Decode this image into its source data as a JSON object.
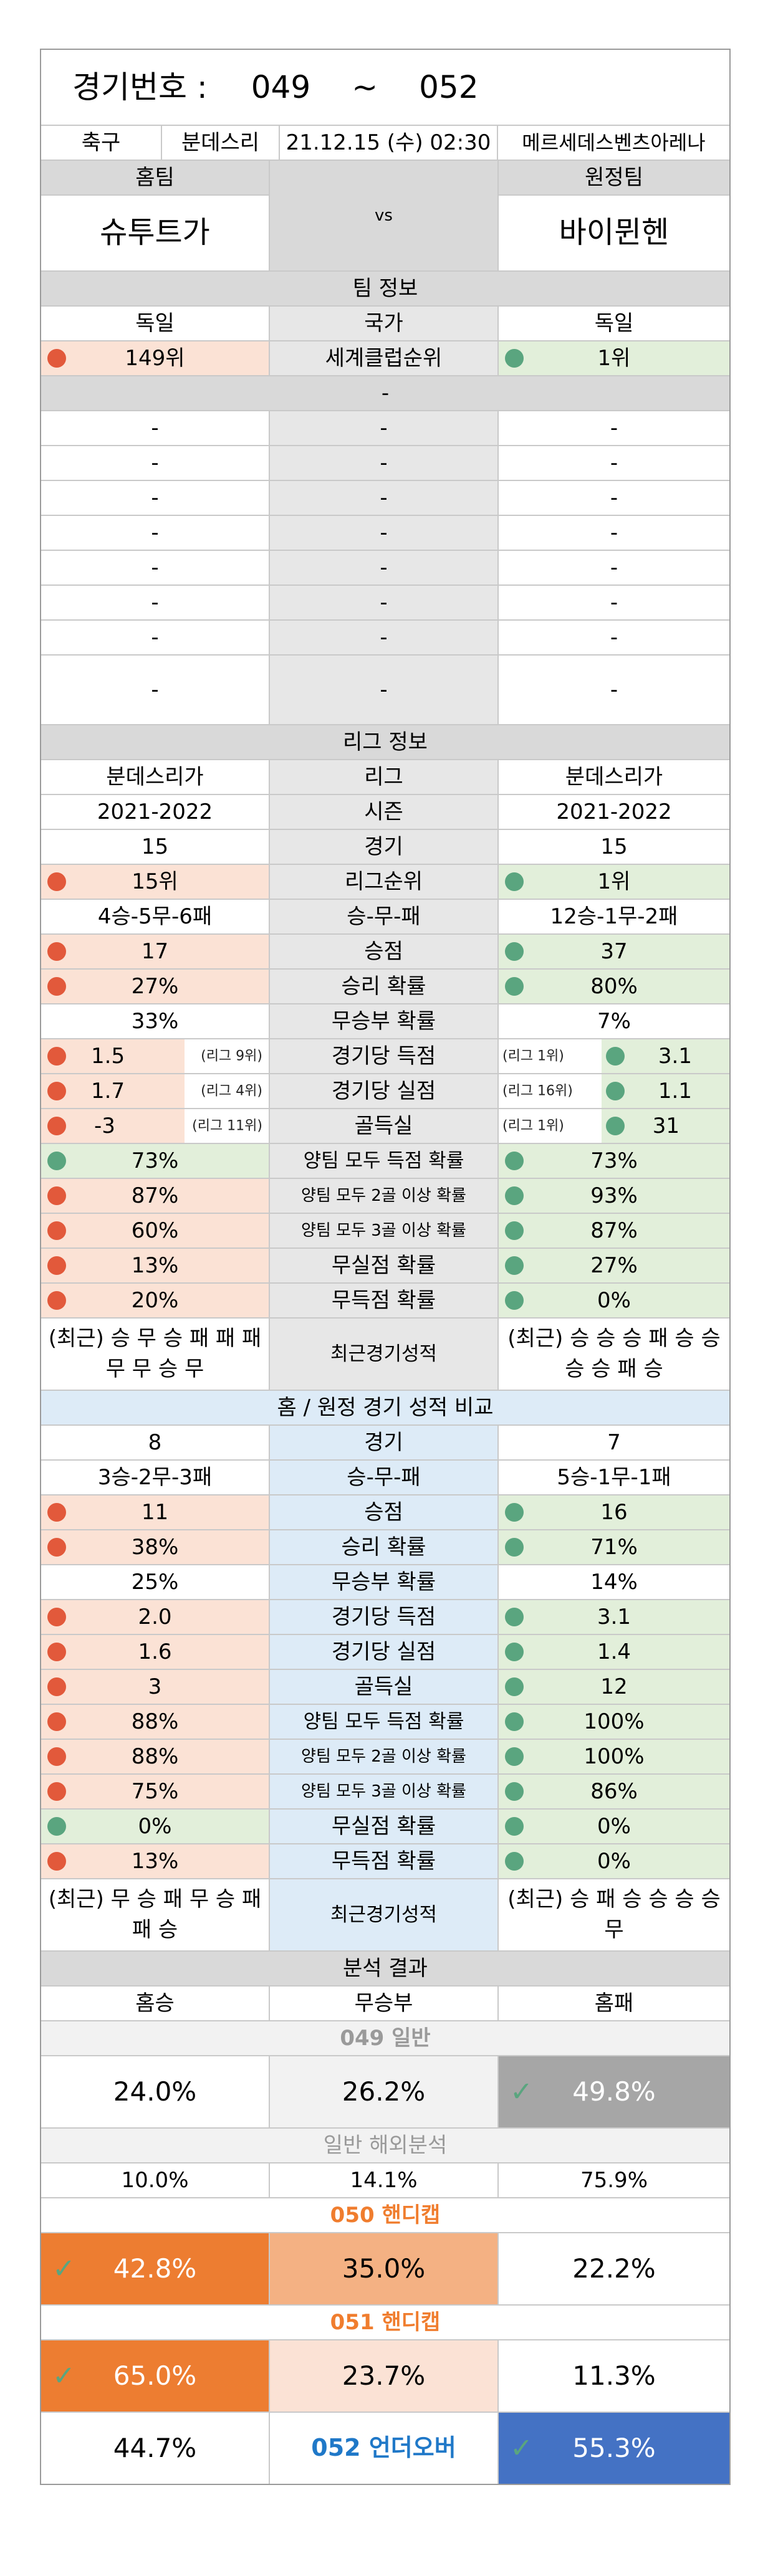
{
  "header": {
    "label": "경기번호 :",
    "from": "049",
    "sep": "~",
    "to": "052"
  },
  "match": {
    "sport": "축구",
    "league": "분데스리",
    "datetime": "21.12.15 (수) 02:30",
    "venue": "메르세데스벤츠아레나"
  },
  "teams": {
    "home_label": "홈팀",
    "away_label": "원정팀",
    "home": "슈투트가",
    "vs": "vs",
    "away": "바이뮌헨"
  },
  "team_info": {
    "title": "팀 정보",
    "country": {
      "home": "독일",
      "label": "국가",
      "away": "독일"
    },
    "rank": {
      "home": "149위",
      "label": "세계클럽순위",
      "away": "1위"
    },
    "sep": "-",
    "rows": [
      [
        "-",
        "-",
        "-"
      ],
      [
        "-",
        "-",
        "-"
      ],
      [
        "-",
        "-",
        "-"
      ],
      [
        "-",
        "-",
        "-"
      ],
      [
        "-",
        "-",
        "-"
      ],
      [
        "-",
        "-",
        "-"
      ],
      [
        "-",
        "-",
        "-"
      ],
      [
        "-",
        "-",
        "-"
      ]
    ]
  },
  "league_info": {
    "title": "리그 정보",
    "league": {
      "home": "분데스리가",
      "label": "리그",
      "away": "분데스리가"
    },
    "season": {
      "home": "2021-2022",
      "label": "시즌",
      "away": "2021-2022"
    },
    "games": {
      "home": "15",
      "label": "경기",
      "away": "15"
    },
    "rank": {
      "home": "15위",
      "label": "리그순위",
      "away": "1위"
    },
    "wdl": {
      "home": "4승-5무-6패",
      "label": "승-무-패",
      "away": "12승-1무-2패"
    },
    "points": {
      "home": "17",
      "label": "승점",
      "away": "37"
    },
    "winrate": {
      "home": "27%",
      "label": "승리 확률",
      "away": "80%"
    },
    "drawrate": {
      "home": "33%",
      "label": "무승부 확률",
      "away": "7%"
    },
    "gf": {
      "home": "1.5",
      "home_rank": "(리그 9위)",
      "label": "경기당 득점",
      "away_rank": "(리그 1위)",
      "away": "3.1"
    },
    "ga": {
      "home": "1.7",
      "home_rank": "(리그 4위)",
      "label": "경기당 실점",
      "away_rank": "(리그 16위)",
      "away": "1.1"
    },
    "gd": {
      "home": "-3",
      "home_rank": "(리그 11위)",
      "label": "골득실",
      "away_rank": "(리그 1위)",
      "away": "31"
    },
    "btts": {
      "home": "73%",
      "label": "양팀 모두 득점 확률",
      "away": "73%"
    },
    "btts2": {
      "home": "87%",
      "label": "양팀 모두 2골 이상 확률",
      "away": "93%"
    },
    "btts3": {
      "home": "60%",
      "label": "양팀 모두 3골 이상 확률",
      "away": "87%"
    },
    "cs": {
      "home": "13%",
      "label": "무실점 확률",
      "away": "27%"
    },
    "fts": {
      "home": "20%",
      "label": "무득점 확률",
      "away": "0%"
    },
    "recent": {
      "home": "(최근) 승 무 승 패 패 패 무 무 승 무",
      "label": "최근경기성적",
      "away": "(최근) 승 승 승 패 승 승 승 승 패 승"
    }
  },
  "ha_info": {
    "title": "홈 / 원정 경기 성적 비교",
    "games": {
      "home": "8",
      "label": "경기",
      "away": "7"
    },
    "wdl": {
      "home": "3승-2무-3패",
      "label": "승-무-패",
      "away": "5승-1무-1패"
    },
    "points": {
      "home": "11",
      "label": "승점",
      "away": "16"
    },
    "winrate": {
      "home": "38%",
      "label": "승리 확률",
      "away": "71%"
    },
    "drawrate": {
      "home": "25%",
      "label": "무승부 확률",
      "away": "14%"
    },
    "gf": {
      "home": "2.0",
      "label": "경기당 득점",
      "away": "3.1"
    },
    "ga": {
      "home": "1.6",
      "label": "경기당 실점",
      "away": "1.4"
    },
    "gd": {
      "home": "3",
      "label": "골득실",
      "away": "12"
    },
    "btts": {
      "home": "88%",
      "label": "양팀 모두 득점 확률",
      "away": "100%"
    },
    "btts2": {
      "home": "88%",
      "label": "양팀 모두 2골 이상 확률",
      "away": "100%"
    },
    "btts3": {
      "home": "75%",
      "label": "양팀 모두 3골 이상 확률",
      "away": "86%"
    },
    "cs": {
      "home": "0%",
      "label": "무실점 확률",
      "away": "0%"
    },
    "fts": {
      "home": "13%",
      "label": "무득점 확률",
      "away": "0%"
    },
    "recent": {
      "home": "(최근) 무 승 패 무 승 패 패 승",
      "label": "최근경기성적",
      "away": "(최근) 승 패 승 승 승 승 무"
    }
  },
  "analysis": {
    "title": "분석 결과",
    "cols": {
      "home": "홈승",
      "draw": "무승부",
      "away": "홈패"
    },
    "g049": {
      "title": "049 일반",
      "home": "24.0%",
      "draw": "26.2%",
      "away": "49.8%"
    },
    "overseas": {
      "title": "일반 해외분석",
      "home": "10.0%",
      "draw": "14.1%",
      "away": "75.9%"
    },
    "g050": {
      "title": "050 핸디캡",
      "home": "42.8%",
      "draw": "35.0%",
      "away": "22.2%"
    },
    "g051": {
      "title": "051 핸디캡",
      "home": "65.0%",
      "draw": "23.7%",
      "away": "11.3%"
    },
    "g052": {
      "title": "052 언더오버",
      "under": "44.7%",
      "over": "55.3%"
    }
  },
  "colors": {
    "red_dot": "#e2593b",
    "green_dot": "#5aa57f",
    "orange": "#ed7d31",
    "light_orange": "#f4b183",
    "pale_orange": "#fbe2d5",
    "gray_pick": "#a6a6a6",
    "blue_pick": "#4472c4"
  }
}
